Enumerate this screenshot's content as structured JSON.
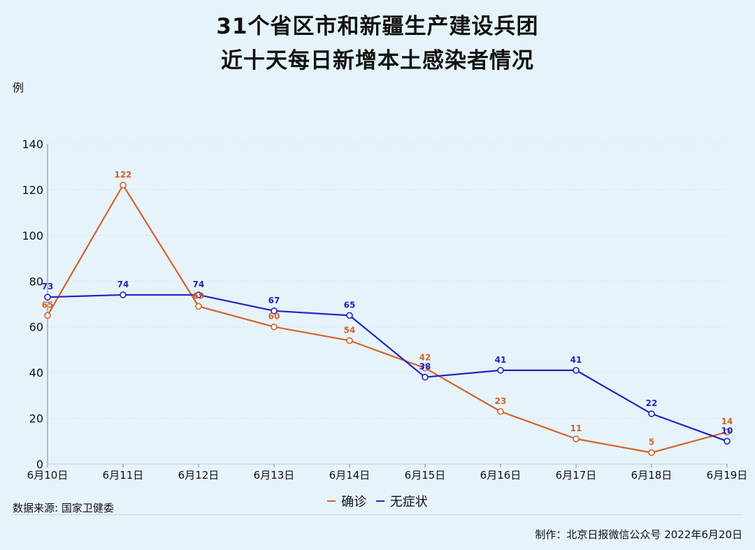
{
  "title_line1": "31个省区市和新疆生产建设兵团",
  "title_line2": "近十天每日新增本土感染者情况",
  "unit": "例",
  "source": "数据来源: 国家卫健委",
  "credit": "制作：北京日报微信公众号 2022年6月20日",
  "chart_data": {
    "type": "line",
    "x": [
      "6月10日",
      "6月11日",
      "6月12日",
      "6月13日",
      "6月14日",
      "6月15日",
      "6月16日",
      "6月17日",
      "6月18日",
      "6月19日"
    ],
    "ylim": [
      0,
      140
    ],
    "yticks": [
      0,
      20,
      40,
      60,
      80,
      100,
      120,
      140
    ],
    "series": [
      {
        "name": "确诊",
        "color": "#d4622a",
        "values": [
          65,
          122,
          69,
          60,
          54,
          42,
          23,
          11,
          5,
          14
        ]
      },
      {
        "name": "无症状",
        "color": "#2323c0",
        "values": [
          73,
          74,
          74,
          67,
          65,
          38,
          41,
          41,
          22,
          10
        ]
      }
    ],
    "legend": "bottom-center"
  }
}
